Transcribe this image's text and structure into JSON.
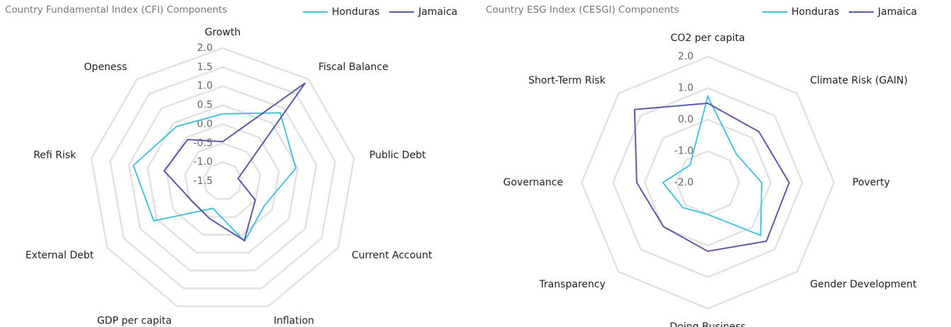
{
  "chart_data": [
    {
      "type": "radar",
      "title": "Country Fundamental Index (CFI) Components",
      "categories": [
        "Growth",
        "Fiscal Balance",
        "Public Debt",
        "Current Account",
        "Inflation",
        "GDP per capita",
        "External Debt",
        "Refi Risk",
        "Openess"
      ],
      "series": [
        {
          "name": "Honduras",
          "color": "#4cc3dd",
          "values": [
            0.27,
            0.85,
            0.45,
            -0.23,
            0.18,
            -0.74,
            0.59,
            0.88,
            0.38
          ]
        },
        {
          "name": "Jamaica",
          "color": "#5b5ba6",
          "values": [
            -0.46,
            1.87,
            -1.09,
            -0.51,
            0.16,
            -0.46,
            -0.53,
            0.06,
            -0.07
          ]
        }
      ],
      "ylim": [
        -1.5,
        2
      ],
      "yticks": [
        -1.5,
        {
          "value": -1,
          "label": "-1.0"
        },
        -0.5,
        {
          "value": 0,
          "label": "0.0"
        },
        0.5,
        {
          "value": 1,
          "label": "1.0"
        },
        1.5,
        {
          "value": 2,
          "label": "2.0"
        }
      ],
      "grid": true,
      "legend": "top-right"
    },
    {
      "type": "radar",
      "title": "Country ESG Index (CESGI) Components",
      "categories": [
        "CO2 per capita",
        "Climate Risk (GAIN)",
        "Poverty",
        "Gender Development",
        "Doing Business",
        "Transparency",
        "Governance",
        "Short-Term Risk"
      ],
      "series": [
        {
          "name": "Honduras",
          "color": "#4cc3dd",
          "values": [
            0.74,
            -0.72,
            -0.29,
            0.37,
            -0.99,
            -0.88,
            -0.58,
            -1.21
          ]
        },
        {
          "name": "Jamaica",
          "color": "#5b5ba6",
          "values": [
            0.52,
            0.29,
            0.58,
            0.63,
            0.18,
            -0.02,
            0.25,
            1.28
          ]
        }
      ],
      "ylim": [
        -2,
        2
      ],
      "yticks": [
        {
          "value": -2,
          "label": "-2.0"
        },
        {
          "value": -1,
          "label": "-1.0"
        },
        {
          "value": 0,
          "label": "0.0"
        },
        {
          "value": 1,
          "label": "1.0"
        },
        {
          "value": 2,
          "label": "2.0"
        }
      ],
      "grid": true,
      "legend": "top-right"
    }
  ]
}
